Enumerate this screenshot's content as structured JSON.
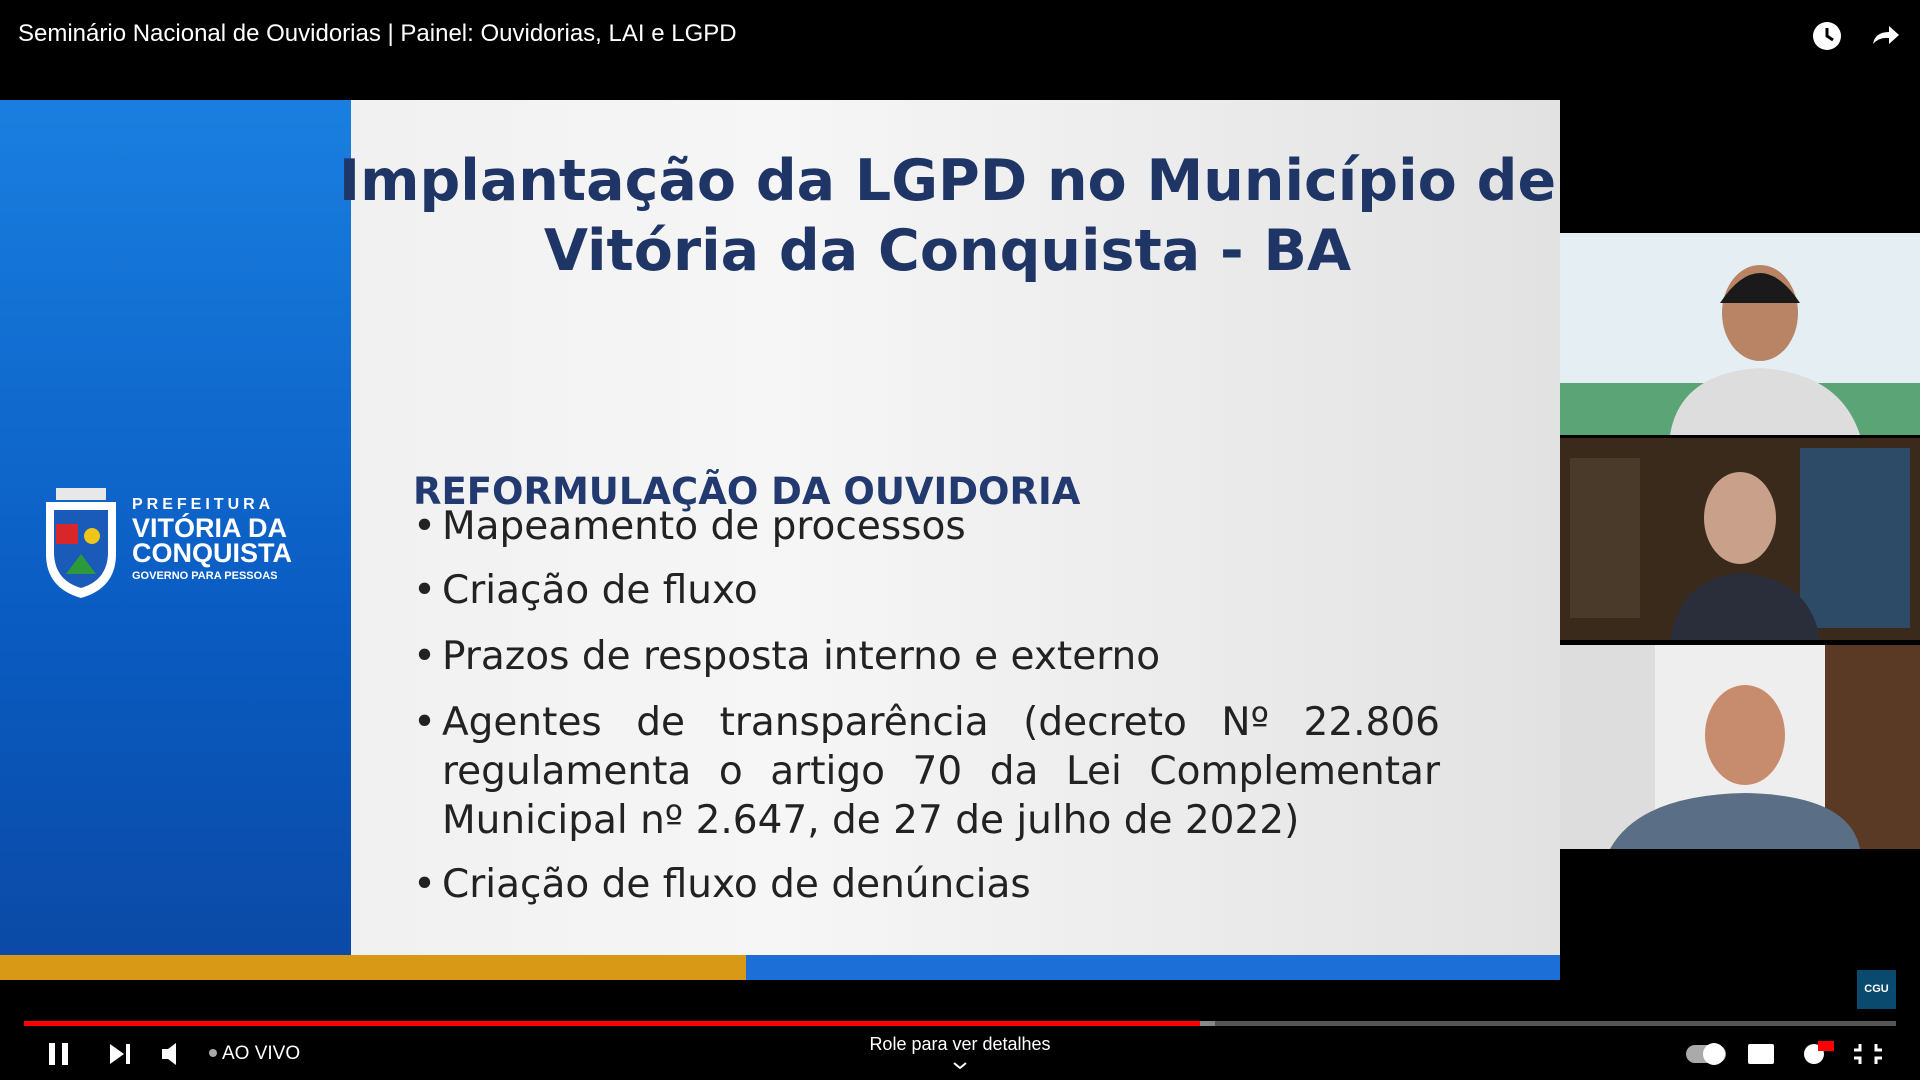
{
  "header": {
    "title": "Seminário Nacional de Ouvidorias | Painel: Ouvidorias, LAI e LGPD"
  },
  "slide": {
    "title_lines": [
      "Implantação da LGPD no Município de",
      "Vitória da Conquista - BA"
    ],
    "section": "REFORMULAÇÃO DA OUVIDORIA",
    "bullets": [
      "Mapeamento de processos",
      "Criação de fluxo",
      "Prazos de resposta interno e externo",
      "Agentes de transparência (decreto Nº 22.806 regulamenta o artigo 70 da Lei Complementar Municipal nº 2.647, de 27 de julho de 2022)",
      "Criação de fluxo de denúncias"
    ],
    "logo": {
      "line1": "PREFEITURA",
      "line2": "VITÓRIA DA",
      "line3": "CONQUISTA",
      "line4": "GOVERNO PARA PESSOAS"
    }
  },
  "watermark": "CGU",
  "controls": {
    "live": "AO VIVO",
    "scroll_hint": "Role para ver detalhes"
  }
}
